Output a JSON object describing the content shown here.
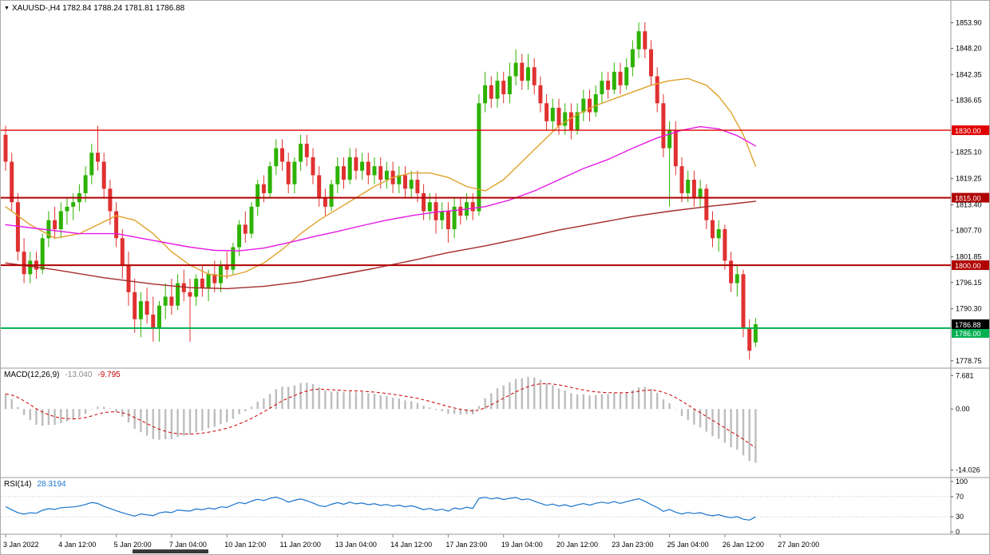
{
  "header": {
    "ohlc_line": "XAUUSD-,H4 1782.84 1788.24 1781.81 1786.88",
    "symbol": "XAUUSD-",
    "timeframe": "H4",
    "open": "1782.84",
    "high": "1788.24",
    "low": "1781.81",
    "close": "1786.88"
  },
  "chart_data": {
    "type": "candlestick",
    "title": "XAUUSD- H4",
    "x_labels": [
      "3 Jan 2022",
      "4 Jan 12:00",
      "5 Jan 20:00",
      "7 Jan 04:00",
      "10 Jan 12:00",
      "11 Jan 20:00",
      "13 Jan 04:00",
      "14 Jan 12:00",
      "17 Jan 23:00",
      "19 Jan 04:00",
      "20 Jan 12:00",
      "23 Jan 23:00",
      "25 Jan 04:00",
      "26 Jan 12:00",
      "27 Jan 20:00"
    ],
    "x_label_every_n_candles": 9,
    "ylim": [
      1778.0,
      1857.0
    ],
    "price_axis_ticks": [
      1853.9,
      1848.2,
      1842.35,
      1836.65,
      1825.1,
      1819.25,
      1813.4,
      1807.7,
      1801.85,
      1796.15,
      1790.3,
      1778.75
    ],
    "candles": [
      [
        1829,
        1831,
        1821,
        1823
      ],
      [
        1823,
        1825,
        1812,
        1814
      ],
      [
        1814,
        1816,
        1801,
        1803
      ],
      [
        1803,
        1806,
        1796,
        1798
      ],
      [
        1798,
        1803,
        1796,
        1801
      ],
      [
        1801,
        1803,
        1797,
        1799
      ],
      [
        1799,
        1807,
        1798,
        1806
      ],
      [
        1806,
        1812,
        1804,
        1810
      ],
      [
        1810,
        1813,
        1806,
        1808
      ],
      [
        1808,
        1814,
        1806,
        1812
      ],
      [
        1812,
        1815,
        1809,
        1813
      ],
      [
        1813,
        1816,
        1810,
        1814
      ],
      [
        1814,
        1818,
        1812,
        1816
      ],
      [
        1816,
        1822,
        1814,
        1820
      ],
      [
        1820,
        1827,
        1818,
        1825
      ],
      [
        1825,
        1831,
        1821,
        1823
      ],
      [
        1823,
        1825,
        1815,
        1817
      ],
      [
        1817,
        1819,
        1809,
        1812
      ],
      [
        1812,
        1814,
        1804,
        1806
      ],
      [
        1806,
        1808,
        1797,
        1800
      ],
      [
        1800,
        1803,
        1791,
        1794
      ],
      [
        1794,
        1797,
        1785,
        1788
      ],
      [
        1788,
        1794,
        1784,
        1792
      ],
      [
        1792,
        1795,
        1787,
        1789
      ],
      [
        1789,
        1793,
        1783,
        1786
      ],
      [
        1786,
        1792,
        1783,
        1791
      ],
      [
        1791,
        1796,
        1788,
        1793
      ],
      [
        1793,
        1797,
        1789,
        1791
      ],
      [
        1791,
        1798,
        1790,
        1796
      ],
      [
        1796,
        1799,
        1792,
        1794
      ],
      [
        1794,
        1797,
        1783,
        1793
      ],
      [
        1793,
        1798,
        1791,
        1797
      ],
      [
        1797,
        1800,
        1793,
        1795
      ],
      [
        1795,
        1799,
        1792,
        1798
      ],
      [
        1798,
        1801,
        1794,
        1796
      ],
      [
        1796,
        1801,
        1794,
        1800
      ],
      [
        1800,
        1803,
        1797,
        1799
      ],
      [
        1799,
        1805,
        1798,
        1804
      ],
      [
        1804,
        1810,
        1802,
        1809
      ],
      [
        1809,
        1812,
        1805,
        1807
      ],
      [
        1807,
        1814,
        1806,
        1813
      ],
      [
        1813,
        1819,
        1811,
        1818
      ],
      [
        1818,
        1820,
        1814,
        1816
      ],
      [
        1816,
        1823,
        1815,
        1822
      ],
      [
        1822,
        1828,
        1820,
        1826
      ],
      [
        1826,
        1828,
        1821,
        1823
      ],
      [
        1823,
        1825,
        1816,
        1818
      ],
      [
        1818,
        1824,
        1816,
        1823
      ],
      [
        1823,
        1829,
        1821,
        1827
      ],
      [
        1827,
        1829,
        1822,
        1824
      ],
      [
        1824,
        1826,
        1818,
        1820
      ],
      [
        1820,
        1822,
        1813,
        1815
      ],
      [
        1815,
        1817,
        1811,
        1813
      ],
      [
        1813,
        1819,
        1812,
        1818
      ],
      [
        1818,
        1824,
        1816,
        1822
      ],
      [
        1822,
        1824,
        1817,
        1819
      ],
      [
        1819,
        1826,
        1818,
        1824
      ],
      [
        1824,
        1826,
        1819,
        1821
      ],
      [
        1821,
        1825,
        1819,
        1823
      ],
      [
        1823,
        1825,
        1818,
        1820
      ],
      [
        1820,
        1824,
        1818,
        1822
      ],
      [
        1822,
        1824,
        1817,
        1819
      ],
      [
        1819,
        1823,
        1817,
        1821
      ],
      [
        1821,
        1823,
        1816,
        1818
      ],
      [
        1818,
        1822,
        1816,
        1820
      ],
      [
        1820,
        1822,
        1815,
        1817
      ],
      [
        1817,
        1821,
        1815,
        1819
      ],
      [
        1819,
        1821,
        1814,
        1816
      ],
      [
        1816,
        1818,
        1810,
        1812
      ],
      [
        1812,
        1816,
        1810,
        1814
      ],
      [
        1814,
        1816,
        1807,
        1810
      ],
      [
        1810,
        1814,
        1808,
        1812
      ],
      [
        1812,
        1814,
        1805,
        1808
      ],
      [
        1808,
        1815,
        1806,
        1813
      ],
      [
        1813,
        1815,
        1809,
        1811
      ],
      [
        1811,
        1816,
        1810,
        1814
      ],
      [
        1814,
        1816,
        1810,
        1812
      ],
      [
        1812,
        1838,
        1811,
        1836
      ],
      [
        1836,
        1843,
        1834,
        1840
      ],
      [
        1840,
        1842,
        1835,
        1837
      ],
      [
        1837,
        1843,
        1835,
        1841
      ],
      [
        1841,
        1843,
        1836,
        1838
      ],
      [
        1838,
        1845,
        1836,
        1842
      ],
      [
        1842,
        1848,
        1840,
        1845
      ],
      [
        1845,
        1847,
        1839,
        1841
      ],
      [
        1841,
        1847,
        1839,
        1844
      ],
      [
        1844,
        1846,
        1838,
        1840
      ],
      [
        1840,
        1842,
        1834,
        1836
      ],
      [
        1836,
        1838,
        1830,
        1832
      ],
      [
        1832,
        1837,
        1830,
        1835
      ],
      [
        1835,
        1837,
        1829,
        1831
      ],
      [
        1831,
        1836,
        1829,
        1834
      ],
      [
        1834,
        1836,
        1828,
        1830
      ],
      [
        1830,
        1836,
        1829,
        1834
      ],
      [
        1834,
        1839,
        1832,
        1837
      ],
      [
        1837,
        1839,
        1832,
        1834
      ],
      [
        1834,
        1840,
        1833,
        1838
      ],
      [
        1838,
        1843,
        1836,
        1841
      ],
      [
        1841,
        1843,
        1837,
        1839
      ],
      [
        1839,
        1845,
        1838,
        1843
      ],
      [
        1843,
        1845,
        1838,
        1840
      ],
      [
        1840,
        1846,
        1839,
        1844
      ],
      [
        1844,
        1850,
        1842,
        1848
      ],
      [
        1848,
        1854,
        1846,
        1852
      ],
      [
        1852,
        1854,
        1846,
        1848
      ],
      [
        1848,
        1850,
        1840,
        1842
      ],
      [
        1842,
        1844,
        1834,
        1836
      ],
      [
        1836,
        1838,
        1824,
        1826
      ],
      [
        1826,
        1832,
        1813,
        1830
      ],
      [
        1830,
        1832,
        1820,
        1822
      ],
      [
        1822,
        1824,
        1814,
        1816
      ],
      [
        1816,
        1821,
        1814,
        1819
      ],
      [
        1819,
        1821,
        1813,
        1815
      ],
      [
        1815,
        1819,
        1813,
        1817
      ],
      [
        1817,
        1818,
        1808,
        1810
      ],
      [
        1810,
        1812,
        1804,
        1806
      ],
      [
        1806,
        1810,
        1803,
        1808
      ],
      [
        1808,
        1809,
        1799,
        1801
      ],
      [
        1801,
        1803,
        1794,
        1796
      ],
      [
        1796,
        1800,
        1793,
        1798
      ],
      [
        1798,
        1799,
        1784,
        1786
      ],
      [
        1786,
        1788,
        1779,
        1781
      ],
      [
        1782.84,
        1788.24,
        1781.81,
        1786.88
      ]
    ],
    "horizontal_lines": [
      {
        "price": 1830.0,
        "label": "1830.00",
        "color": "#e00000",
        "width": 1.4,
        "tag_dy": 0
      },
      {
        "price": 1815.0,
        "label": "1815.00",
        "color": "#b00000",
        "width": 2,
        "tag_dy": 0
      },
      {
        "price": 1800.0,
        "label": "1800.00",
        "color": "#b00000",
        "width": 2,
        "tag_dy": 0
      },
      {
        "price": 1786.0,
        "label": "1786.00",
        "color": "#00b050",
        "width": 2,
        "tag_dy": 6
      }
    ],
    "current_price_tag": {
      "price": 1786.88,
      "label": "1786.88",
      "color": "#000000"
    },
    "moving_averages": [
      {
        "name": "ma-fast-orange-line",
        "color": "#dfa22b",
        "points": [
          [
            0,
            1813
          ],
          [
            4,
            1809
          ],
          [
            8,
            1806
          ],
          [
            12,
            1807
          ],
          [
            15,
            1809
          ],
          [
            18,
            1811
          ],
          [
            21,
            1810
          ],
          [
            24,
            1807
          ],
          [
            27,
            1803
          ],
          [
            30,
            1800
          ],
          [
            33,
            1798
          ],
          [
            36,
            1797.5
          ],
          [
            39,
            1798.5
          ],
          [
            42,
            1800.5
          ],
          [
            45,
            1803.5
          ],
          [
            48,
            1807
          ],
          [
            51,
            1810
          ],
          [
            54,
            1812.5
          ],
          [
            57,
            1815
          ],
          [
            60,
            1817.5
          ],
          [
            63,
            1819.5
          ],
          [
            66,
            1820.5
          ],
          [
            69,
            1820.5
          ],
          [
            72,
            1819.5
          ],
          [
            75,
            1817.5
          ],
          [
            78,
            1816.5
          ],
          [
            81,
            1819
          ],
          [
            84,
            1823
          ],
          [
            87,
            1827
          ],
          [
            90,
            1831
          ],
          [
            93,
            1833.5
          ],
          [
            96,
            1835.5
          ],
          [
            99,
            1837
          ],
          [
            102,
            1838.5
          ],
          [
            105,
            1840
          ],
          [
            108,
            1841
          ],
          [
            111,
            1841.5
          ],
          [
            114,
            1840
          ],
          [
            116,
            1837.5
          ],
          [
            118,
            1834
          ],
          [
            120,
            1829
          ],
          [
            122,
            1822
          ]
        ]
      },
      {
        "name": "ma-mid-magenta-line",
        "color": "#e619e6",
        "points": [
          [
            0,
            1809
          ],
          [
            6,
            1808
          ],
          [
            12,
            1807
          ],
          [
            18,
            1807
          ],
          [
            24,
            1805.5
          ],
          [
            30,
            1804
          ],
          [
            34,
            1803.3
          ],
          [
            38,
            1803.2
          ],
          [
            42,
            1803.8
          ],
          [
            46,
            1805
          ],
          [
            50,
            1806.3
          ],
          [
            54,
            1807.5
          ],
          [
            58,
            1808.8
          ],
          [
            62,
            1810
          ],
          [
            66,
            1811
          ],
          [
            70,
            1811.8
          ],
          [
            74,
            1812.3
          ],
          [
            78,
            1813
          ],
          [
            82,
            1814.5
          ],
          [
            86,
            1816.5
          ],
          [
            90,
            1819
          ],
          [
            94,
            1821.5
          ],
          [
            98,
            1823.5
          ],
          [
            102,
            1826
          ],
          [
            106,
            1828.3
          ],
          [
            110,
            1830
          ],
          [
            113,
            1830.8
          ],
          [
            116,
            1830.3
          ],
          [
            119,
            1828.8
          ],
          [
            122,
            1826.5
          ]
        ]
      },
      {
        "name": "ma-slow-maroon-line",
        "color": "#a52a2a",
        "points": [
          [
            0,
            1800.5
          ],
          [
            8,
            1799
          ],
          [
            16,
            1797.2
          ],
          [
            24,
            1795.8
          ],
          [
            30,
            1795
          ],
          [
            36,
            1794.8
          ],
          [
            42,
            1795.3
          ],
          [
            48,
            1796.3
          ],
          [
            54,
            1797.8
          ],
          [
            60,
            1799.3
          ],
          [
            66,
            1801
          ],
          [
            72,
            1802.8
          ],
          [
            78,
            1804.3
          ],
          [
            84,
            1806
          ],
          [
            90,
            1807.8
          ],
          [
            96,
            1809.3
          ],
          [
            102,
            1810.8
          ],
          [
            108,
            1812
          ],
          [
            114,
            1813
          ],
          [
            118,
            1813.6
          ],
          [
            122,
            1814.2
          ]
        ]
      }
    ],
    "indicators": {
      "macd": {
        "name": "MACD(12,26,9)",
        "main_label": "-13.040",
        "signal_label": "-9.795",
        "params": [
          12,
          26,
          9
        ],
        "scale_ticks": [
          "7.681",
          "0.00",
          "-14.026"
        ],
        "histogram_color": "#bdbdbd",
        "signal_color": "#cc0000"
      },
      "rsi": {
        "name": "RSI(14)",
        "value_label": "28.3194",
        "period": 14,
        "scale_ticks": [
          "100",
          "70",
          "30",
          "0"
        ],
        "levels": [
          70,
          30
        ],
        "line_color": "#1874cd"
      }
    },
    "colors": {
      "bull": "#2db200",
      "bear": "#e03131",
      "background": "#ffffff",
      "axis_text": "#000000"
    }
  }
}
